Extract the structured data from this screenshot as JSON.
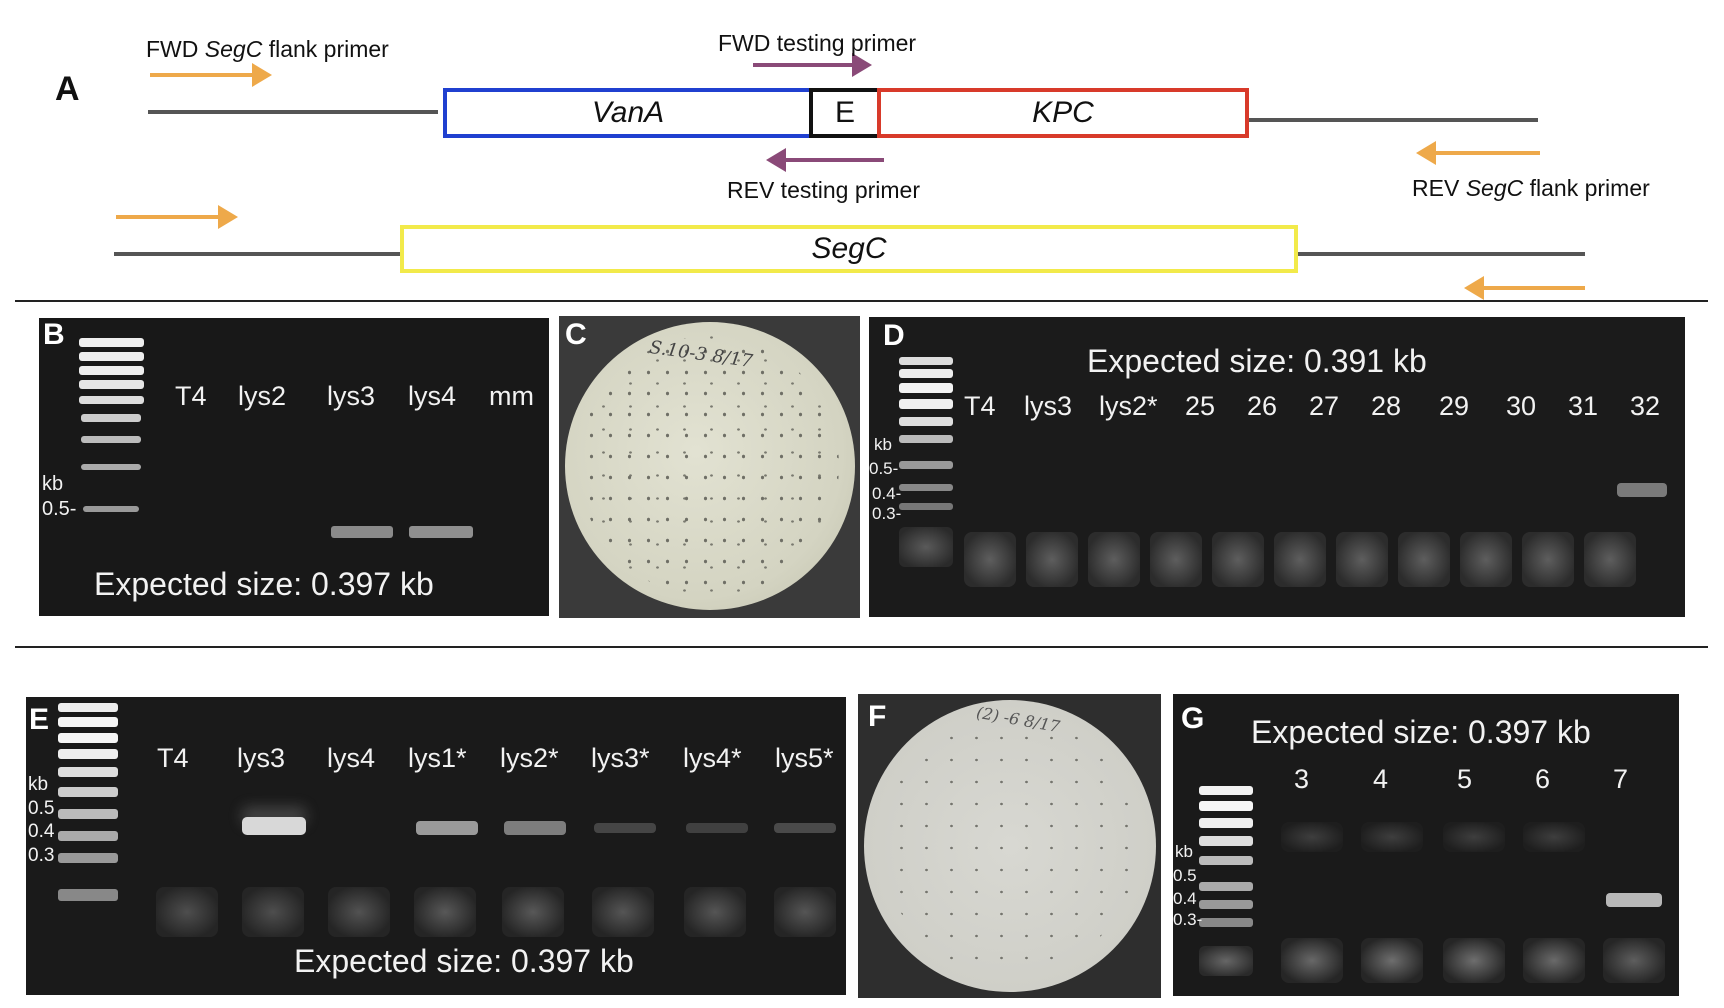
{
  "panel_a": {
    "letter": "A",
    "fwd_flank_prefix": "FWD ",
    "fwd_flank_gene": "SegC",
    "fwd_flank_suffix": " flank primer",
    "fwd_testing": "FWD testing primer",
    "rev_testing": "REV testing primer",
    "rev_flank_prefix": "REV ",
    "rev_flank_gene": "SegC",
    "rev_flank_suffix": " flank primer",
    "box_vana": "VanA",
    "box_e": "E",
    "box_kpc": "KPC",
    "box_segc": "SegC",
    "colors": {
      "vana": "#2040d0",
      "kpc": "#d83a2a",
      "segc": "#f2ea4a",
      "flank_arrow": "#eea94a",
      "testing_arrow": "#8a4a78"
    }
  },
  "panel_b": {
    "letter": "B",
    "lanes": [
      "T4",
      "lys2",
      "lys3",
      "lys4",
      "mm"
    ],
    "marker_unit": "kb",
    "marker_05": "0.5-",
    "caption": "Expected size: 0.397 kb"
  },
  "panel_c": {
    "letter": "C",
    "handwriting": "S.10-3  8/17"
  },
  "panel_d": {
    "letter": "D",
    "caption": "Expected size: 0.391 kb",
    "lanes": [
      "T4",
      "lys3",
      "lys2*",
      "25",
      "26",
      "27",
      "28",
      "29",
      "30",
      "31",
      "32"
    ],
    "marker_unit": "kb",
    "marker_05": "0.5-",
    "marker_04": "0.4-",
    "marker_03": "0.3-"
  },
  "panel_e": {
    "letter": "E",
    "lanes": [
      "T4",
      "lys3",
      "lys4",
      "lys1*",
      "lys2*",
      "lys3*",
      "lys4*",
      "lys5*"
    ],
    "marker_unit": "kb",
    "marker_05": "0.5",
    "marker_04": "0.4",
    "marker_03": "0.3",
    "caption": "Expected size: 0.397 kb"
  },
  "panel_f": {
    "letter": "F",
    "handwriting": "(2) -6  8/17"
  },
  "panel_g": {
    "letter": "G",
    "caption": "Expected size: 0.397 kb",
    "lanes": [
      "3",
      "4",
      "5",
      "6",
      "7"
    ],
    "marker_unit": "kb",
    "marker_05": "0.5",
    "marker_04": "0.4",
    "marker_03": "0.3-"
  }
}
